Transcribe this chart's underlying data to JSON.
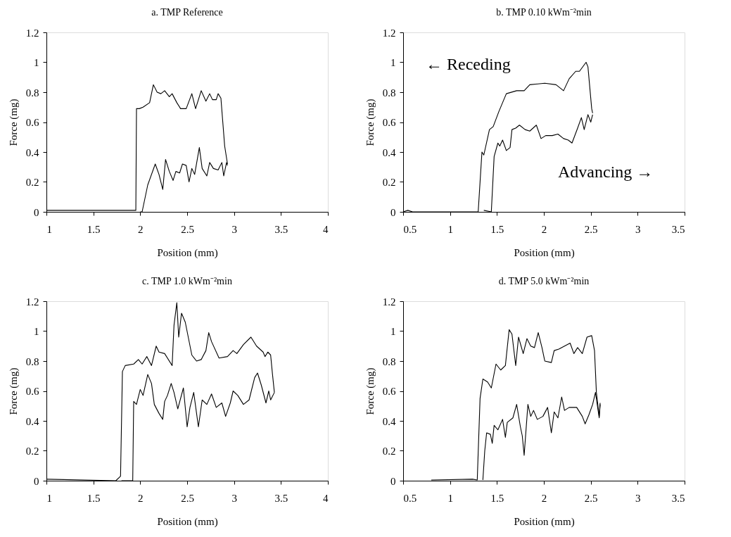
{
  "chart_data": [
    {
      "type": "line",
      "title": "a. TMP Reference",
      "xlabel": "Position (mm)",
      "ylabel": "Force (mg)",
      "xlim": [
        1,
        4
      ],
      "xticks": [
        1,
        1.5,
        2,
        2.5,
        3,
        3.5,
        4
      ],
      "ylim": [
        0,
        1.2
      ],
      "yticks": [
        0,
        0.2,
        0.4,
        0.6,
        0.8,
        1,
        1.2
      ],
      "grid": false,
      "legend": false,
      "marker": "none",
      "line_style": "solid",
      "series": [
        {
          "color": "#000000",
          "x": [
            1.0,
            1.953,
            1.96,
            1.99,
            2.03,
            2.1,
            2.14,
            2.18,
            2.22,
            2.26,
            2.31,
            2.34,
            2.39,
            2.43,
            2.49,
            2.55,
            2.59,
            2.65,
            2.7,
            2.74,
            2.77,
            2.81,
            2.83,
            2.86,
            2.88,
            2.9,
            2.93
          ],
          "values": [
            0.01,
            0.01,
            0.69,
            0.69,
            0.7,
            0.73,
            0.85,
            0.8,
            0.79,
            0.81,
            0.77,
            0.79,
            0.73,
            0.69,
            0.69,
            0.79,
            0.69,
            0.81,
            0.74,
            0.79,
            0.75,
            0.75,
            0.79,
            0.76,
            0.6,
            0.44,
            0.32
          ]
        },
        {
          "color": "#000000",
          "x": [
            2.0,
            2.02,
            2.08,
            2.16,
            2.2,
            2.24,
            2.27,
            2.31,
            2.35,
            2.38,
            2.42,
            2.45,
            2.49,
            2.52,
            2.55,
            2.58,
            2.63,
            2.66,
            2.71,
            2.74,
            2.78,
            2.83,
            2.87,
            2.89,
            2.92,
            2.93
          ],
          "values": [
            0,
            0,
            0.18,
            0.32,
            0.25,
            0.15,
            0.35,
            0.27,
            0.21,
            0.27,
            0.26,
            0.32,
            0.31,
            0.2,
            0.29,
            0.25,
            0.43,
            0.29,
            0.24,
            0.33,
            0.29,
            0.28,
            0.33,
            0.24,
            0.33,
            0.31
          ]
        }
      ]
    },
    {
      "type": "line",
      "title": "b. TMP 0.10 kWm⁻²min",
      "xlabel": "Position (mm)",
      "ylabel": "Force (mg)",
      "xlim": [
        0.5,
        3.5
      ],
      "xticks": [
        0.5,
        1,
        1.5,
        2,
        2.5,
        3,
        3.5
      ],
      "ylim": [
        0,
        1.2
      ],
      "yticks": [
        0,
        0.2,
        0.4,
        0.6,
        0.8,
        1,
        1.2
      ],
      "grid": false,
      "legend": false,
      "marker": "none",
      "line_style": "solid",
      "annotations": [
        "← Receding",
        "Advancing →"
      ],
      "series": [
        {
          "color": "#000000",
          "x": [
            0.5,
            0.55,
            0.6,
            1.3,
            1.34,
            1.36,
            1.42,
            1.46,
            1.52,
            1.6,
            1.71,
            1.79,
            1.85,
            2.01,
            2.13,
            2.21,
            2.27,
            2.34,
            2.38,
            2.45,
            2.47,
            2.51,
            2.52
          ],
          "values": [
            0,
            0.01,
            0,
            0,
            0.4,
            0.38,
            0.55,
            0.57,
            0.67,
            0.79,
            0.81,
            0.81,
            0.85,
            0.86,
            0.85,
            0.81,
            0.89,
            0.94,
            0.94,
            1.0,
            0.97,
            0.69,
            0.66
          ]
        },
        {
          "color": "#000000",
          "x": [
            1.36,
            1.44,
            1.47,
            1.51,
            1.53,
            1.56,
            1.6,
            1.64,
            1.66,
            1.7,
            1.74,
            1.8,
            1.85,
            1.92,
            1.97,
            2.02,
            2.09,
            2.15,
            2.21,
            2.26,
            2.3,
            2.36,
            2.4,
            2.43,
            2.47,
            2.5,
            2.52
          ],
          "values": [
            0.01,
            0,
            0.37,
            0.46,
            0.44,
            0.48,
            0.41,
            0.43,
            0.55,
            0.56,
            0.58,
            0.55,
            0.54,
            0.58,
            0.49,
            0.51,
            0.51,
            0.52,
            0.49,
            0.48,
            0.46,
            0.56,
            0.63,
            0.55,
            0.65,
            0.6,
            0.65
          ]
        }
      ]
    },
    {
      "type": "line",
      "title": "c. TMP 1.0 kWm⁻²min",
      "xlabel": "Position (mm)",
      "ylabel": "Force (mg)",
      "xlim": [
        1,
        4
      ],
      "xticks": [
        1,
        1.5,
        2,
        2.5,
        3,
        3.5,
        4
      ],
      "ylim": [
        0,
        1.2
      ],
      "yticks": [
        0,
        0.2,
        0.4,
        0.6,
        0.8,
        1,
        1.2
      ],
      "grid": false,
      "legend": false,
      "marker": "none",
      "line_style": "solid",
      "series": [
        {
          "color": "#000000",
          "x": [
            1.0,
            1.74,
            1.79,
            1.81,
            1.84,
            1.93,
            1.98,
            2.02,
            2.07,
            2.12,
            2.17,
            2.2,
            2.26,
            2.34,
            2.36,
            2.39,
            2.41,
            2.44,
            2.48,
            2.55,
            2.6,
            2.65,
            2.7,
            2.73,
            2.76,
            2.84,
            2.93,
            2.99,
            3.03,
            3.1,
            3.18,
            3.24,
            3.31,
            3.33,
            3.36,
            3.39,
            3.41,
            3.43
          ],
          "values": [
            0.01,
            0,
            0.03,
            0.73,
            0.77,
            0.78,
            0.81,
            0.78,
            0.83,
            0.77,
            0.9,
            0.86,
            0.85,
            0.77,
            1.04,
            1.19,
            0.96,
            1.12,
            1.06,
            0.84,
            0.8,
            0.81,
            0.87,
            0.99,
            0.93,
            0.82,
            0.83,
            0.87,
            0.85,
            0.91,
            0.96,
            0.9,
            0.86,
            0.83,
            0.86,
            0.84,
            0.71,
            0.59
          ]
        },
        {
          "color": "#000000",
          "x": [
            1.8,
            1.92,
            1.93,
            1.96,
            2.0,
            2.03,
            2.08,
            2.12,
            2.15,
            2.2,
            2.24,
            2.26,
            2.29,
            2.33,
            2.36,
            2.4,
            2.46,
            2.5,
            2.53,
            2.57,
            2.62,
            2.66,
            2.71,
            2.76,
            2.81,
            2.87,
            2.91,
            2.96,
            2.99,
            3.04,
            3.1,
            3.16,
            3.22,
            3.25,
            3.29,
            3.34,
            3.37,
            3.39,
            3.43
          ],
          "values": [
            0,
            0,
            0.53,
            0.51,
            0.61,
            0.57,
            0.71,
            0.65,
            0.51,
            0.45,
            0.41,
            0.53,
            0.57,
            0.65,
            0.59,
            0.48,
            0.62,
            0.36,
            0.49,
            0.59,
            0.36,
            0.54,
            0.51,
            0.58,
            0.49,
            0.52,
            0.43,
            0.52,
            0.6,
            0.57,
            0.51,
            0.54,
            0.69,
            0.72,
            0.64,
            0.52,
            0.6,
            0.54,
            0.59
          ]
        }
      ]
    },
    {
      "type": "line",
      "title": "d. TMP 5.0 kWm⁻²min",
      "xlabel": "Position (mm)",
      "ylabel": "Force (mg)",
      "xlim": [
        0.5,
        3.5
      ],
      "xticks": [
        0.5,
        1,
        1.5,
        2,
        2.5,
        3,
        3.5
      ],
      "ylim": [
        0,
        1.2
      ],
      "yticks": [
        0,
        0.2,
        0.4,
        0.6,
        0.8,
        1,
        1.2
      ],
      "grid": false,
      "legend": false,
      "marker": "none",
      "line_style": "solid",
      "series": [
        {
          "color": "#000000",
          "x": [
            0.8,
            1.24,
            1.29,
            1.32,
            1.35,
            1.4,
            1.44,
            1.49,
            1.54,
            1.59,
            1.63,
            1.66,
            1.7,
            1.73,
            1.78,
            1.82,
            1.86,
            1.9,
            1.94,
            1.98,
            2.01,
            2.08,
            2.11,
            2.16,
            2.22,
            2.28,
            2.32,
            2.36,
            2.41,
            2.46,
            2.51,
            2.54,
            2.56,
            2.59,
            2.6
          ],
          "values": [
            0.005,
            0.01,
            0.005,
            0.55,
            0.68,
            0.66,
            0.62,
            0.78,
            0.74,
            0.77,
            1.01,
            0.98,
            0.77,
            0.96,
            0.85,
            0.95,
            0.9,
            0.89,
            0.99,
            0.89,
            0.8,
            0.79,
            0.87,
            0.88,
            0.9,
            0.92,
            0.85,
            0.89,
            0.85,
            0.96,
            0.97,
            0.87,
            0.59,
            0.43,
            0.52
          ]
        },
        {
          "color": "#000000",
          "x": [
            1.35,
            1.37,
            1.39,
            1.43,
            1.45,
            1.47,
            1.51,
            1.56,
            1.59,
            1.61,
            1.67,
            1.71,
            1.75,
            1.77,
            1.79,
            1.83,
            1.86,
            1.89,
            1.93,
            1.99,
            2.04,
            2.08,
            2.11,
            2.15,
            2.19,
            2.22,
            2.27,
            2.35,
            2.41,
            2.44,
            2.48,
            2.52,
            2.55,
            2.59,
            2.6
          ],
          "values": [
            0.005,
            0.2,
            0.32,
            0.31,
            0.25,
            0.37,
            0.34,
            0.41,
            0.29,
            0.39,
            0.42,
            0.51,
            0.36,
            0.3,
            0.17,
            0.51,
            0.43,
            0.47,
            0.41,
            0.43,
            0.49,
            0.32,
            0.46,
            0.42,
            0.56,
            0.47,
            0.49,
            0.49,
            0.43,
            0.38,
            0.44,
            0.51,
            0.59,
            0.42,
            0.51
          ]
        }
      ]
    }
  ]
}
